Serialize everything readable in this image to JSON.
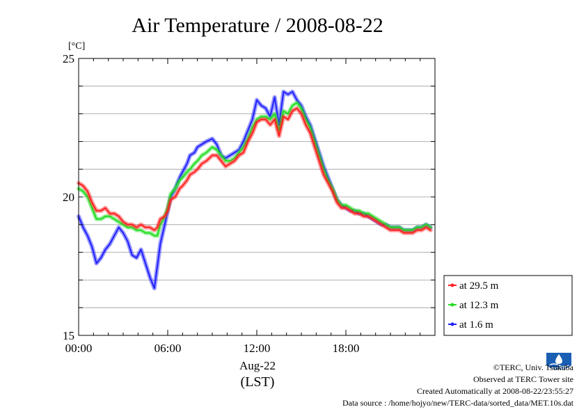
{
  "chart_data": {
    "type": "line",
    "title": "Air Temperature / 2008-08-22",
    "ylabel": "[°C]",
    "xlabel_date": "Aug-22",
    "xlabel_zone": "(LST)",
    "xlim": [
      0,
      24
    ],
    "ylim": [
      15,
      25
    ],
    "y_ticks": [
      "15",
      "20",
      "25"
    ],
    "x_ticks": [
      {
        "value": 0,
        "label": "00:00"
      },
      {
        "value": 6,
        "label": "06:00"
      },
      {
        "value": 12,
        "label": "12:00"
      },
      {
        "value": 18,
        "label": "18:00"
      }
    ],
    "grid": true,
    "legend_position": "bottom-right outside",
    "series": [
      {
        "name": "at 29.5 m",
        "color": "#ff2020",
        "x": [
          0,
          0.3,
          0.6,
          0.9,
          1.2,
          1.5,
          1.8,
          2.1,
          2.4,
          2.7,
          3.0,
          3.3,
          3.6,
          3.9,
          4.2,
          4.5,
          4.8,
          5.1,
          5.3,
          5.5,
          5.8,
          6.0,
          6.2,
          6.5,
          6.8,
          7.0,
          7.3,
          7.5,
          7.8,
          8.0,
          8.3,
          8.6,
          9.0,
          9.3,
          9.6,
          9.9,
          10.2,
          10.5,
          10.8,
          11.1,
          11.4,
          11.7,
          12.0,
          12.3,
          12.6,
          12.9,
          13.2,
          13.5,
          13.8,
          14.1,
          14.4,
          14.7,
          15.0,
          15.3,
          15.6,
          15.9,
          16.2,
          16.5,
          16.8,
          17.1,
          17.4,
          17.7,
          18.0,
          18.3,
          18.6,
          18.9,
          19.2,
          19.5,
          19.8,
          20.1,
          20.4,
          20.7,
          21.0,
          21.3,
          21.6,
          21.9,
          22.2,
          22.5,
          22.8,
          23.1,
          23.4,
          23.7
        ],
        "y": [
          20.5,
          20.4,
          20.2,
          19.8,
          19.5,
          19.5,
          19.6,
          19.4,
          19.4,
          19.3,
          19.1,
          19.0,
          19.0,
          18.9,
          19.0,
          18.9,
          18.9,
          18.8,
          18.9,
          19.2,
          19.3,
          19.5,
          19.9,
          20.0,
          20.3,
          20.4,
          20.6,
          20.8,
          20.9,
          21.0,
          21.2,
          21.3,
          21.5,
          21.5,
          21.3,
          21.1,
          21.2,
          21.3,
          21.5,
          21.6,
          22.0,
          22.3,
          22.7,
          22.8,
          22.8,
          22.6,
          22.8,
          22.2,
          22.9,
          22.8,
          23.1,
          23.2,
          23.0,
          22.6,
          22.3,
          21.8,
          21.3,
          20.8,
          20.5,
          20.2,
          19.8,
          19.6,
          19.6,
          19.5,
          19.4,
          19.4,
          19.3,
          19.3,
          19.2,
          19.1,
          19.0,
          18.9,
          18.8,
          18.8,
          18.8,
          18.7,
          18.7,
          18.7,
          18.8,
          18.8,
          18.9,
          18.8
        ]
      },
      {
        "name": "at 12.3 m",
        "color": "#20dd20",
        "x": [
          0,
          0.3,
          0.6,
          0.9,
          1.2,
          1.5,
          1.8,
          2.1,
          2.4,
          2.7,
          3.0,
          3.3,
          3.6,
          3.9,
          4.2,
          4.5,
          4.8,
          5.1,
          5.3,
          5.5,
          5.8,
          6.0,
          6.2,
          6.5,
          6.8,
          7.0,
          7.3,
          7.5,
          7.8,
          8.0,
          8.3,
          8.6,
          9.0,
          9.3,
          9.6,
          9.9,
          10.2,
          10.5,
          10.8,
          11.1,
          11.4,
          11.7,
          12.0,
          12.3,
          12.6,
          12.9,
          13.2,
          13.5,
          13.8,
          14.1,
          14.4,
          14.7,
          15.0,
          15.3,
          15.6,
          15.9,
          16.2,
          16.5,
          16.8,
          17.1,
          17.4,
          17.7,
          18.0,
          18.3,
          18.6,
          18.9,
          19.2,
          19.5,
          19.8,
          20.1,
          20.4,
          20.7,
          21.0,
          21.3,
          21.6,
          21.9,
          22.2,
          22.5,
          22.8,
          23.1,
          23.4,
          23.7
        ],
        "y": [
          20.3,
          20.2,
          20.0,
          19.6,
          19.2,
          19.2,
          19.3,
          19.3,
          19.2,
          19.1,
          19.0,
          18.9,
          18.9,
          18.8,
          18.8,
          18.7,
          18.7,
          18.6,
          18.6,
          19.0,
          19.3,
          19.6,
          20.1,
          20.3,
          20.6,
          20.7,
          20.9,
          21.0,
          21.2,
          21.3,
          21.5,
          21.6,
          21.8,
          21.7,
          21.5,
          21.3,
          21.3,
          21.4,
          21.6,
          21.8,
          22.1,
          22.5,
          22.8,
          22.9,
          22.9,
          22.8,
          23.0,
          22.4,
          23.1,
          23.0,
          23.3,
          23.4,
          23.2,
          22.8,
          22.5,
          22.0,
          21.5,
          21.0,
          20.6,
          20.3,
          19.9,
          19.7,
          19.7,
          19.6,
          19.5,
          19.5,
          19.4,
          19.4,
          19.3,
          19.2,
          19.1,
          19.0,
          18.9,
          18.9,
          18.9,
          18.8,
          18.8,
          18.8,
          18.9,
          18.9,
          19.0,
          18.9
        ]
      },
      {
        "name": "at 1.6 m",
        "color": "#2020ff",
        "x": [
          0,
          0.3,
          0.6,
          0.9,
          1.2,
          1.5,
          1.8,
          2.1,
          2.4,
          2.7,
          3.0,
          3.3,
          3.6,
          3.9,
          4.2,
          4.5,
          4.8,
          5.1,
          5.3,
          5.5,
          5.8,
          6.0,
          6.2,
          6.5,
          6.8,
          7.0,
          7.3,
          7.5,
          7.8,
          8.0,
          8.3,
          8.6,
          9.0,
          9.3,
          9.6,
          9.9,
          10.2,
          10.5,
          10.8,
          11.1,
          11.4,
          11.7,
          12.0,
          12.3,
          12.6,
          12.9,
          13.2,
          13.5,
          13.8,
          14.1,
          14.4,
          14.7,
          15.0,
          15.3,
          15.6,
          15.9,
          16.2,
          16.5,
          16.8,
          17.1,
          17.4,
          17.7,
          18.0,
          18.3,
          18.6,
          18.9,
          19.2,
          19.5,
          19.8,
          20.1,
          20.4,
          20.7,
          21.0,
          21.3,
          21.6,
          21.9,
          22.2,
          22.5,
          22.8,
          23.1,
          23.4,
          23.7
        ],
        "y": [
          19.3,
          18.9,
          18.6,
          18.2,
          17.6,
          17.8,
          18.1,
          18.3,
          18.6,
          18.9,
          18.7,
          18.4,
          17.9,
          17.8,
          18.1,
          17.6,
          17.1,
          16.7,
          17.5,
          18.3,
          19.0,
          19.5,
          20.0,
          20.3,
          20.7,
          20.9,
          21.2,
          21.5,
          21.6,
          21.8,
          21.9,
          22.0,
          22.1,
          21.9,
          21.5,
          21.4,
          21.5,
          21.6,
          21.7,
          22.0,
          22.4,
          22.8,
          23.5,
          23.3,
          23.2,
          22.9,
          23.6,
          22.6,
          23.8,
          23.7,
          23.8,
          23.5,
          23.3,
          22.9,
          22.6,
          22.1,
          21.6,
          21.1,
          20.7,
          20.3,
          19.9,
          19.7,
          19.6,
          19.5,
          19.5,
          19.4,
          19.4,
          19.3,
          19.2,
          19.1,
          19.0,
          19.0,
          18.9,
          18.9,
          18.9,
          18.8,
          18.8,
          18.8,
          18.9,
          18.9,
          19.0,
          18.9
        ]
      }
    ]
  },
  "credits": {
    "copyright": "©TERC, Univ. Tsukuba",
    "site": "Observed at TERC Tower site",
    "created": "Created Automatically at 2008-08-22/23:55:27",
    "source": "Data source : /home/hojyo/new/TERC-data/sorted_data/MET.10s.dat"
  },
  "logo": {
    "text": "TERC",
    "color": "#1a5fb4",
    "icon": "terc-logo-icon"
  }
}
